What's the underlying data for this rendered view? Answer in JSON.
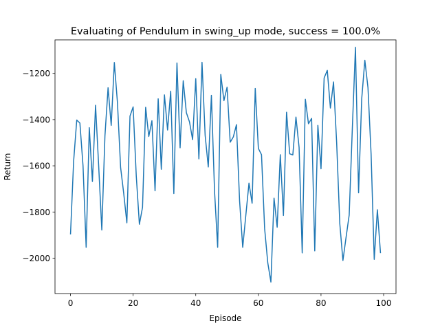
{
  "chart_data": {
    "type": "line",
    "title": "Evaluating of Pendulum in swing_up mode, success = 100.0%",
    "xlabel": "Episode",
    "ylabel": "Return",
    "xlim": [
      -4.95,
      103.95
    ],
    "ylim": [
      -2153,
      -1055
    ],
    "xticks": [
      0,
      20,
      40,
      60,
      80,
      100
    ],
    "yticks": [
      -2000,
      -1800,
      -1600,
      -1400,
      -1200
    ],
    "grid": false,
    "legend": "none",
    "series": [
      {
        "color": "#1f77b4",
        "x": [
          0,
          1,
          2,
          3,
          4,
          5,
          6,
          7,
          8,
          9,
          10,
          11,
          12,
          13,
          14,
          15,
          16,
          17,
          18,
          19,
          20,
          21,
          22,
          23,
          24,
          25,
          26,
          27,
          28,
          29,
          30,
          31,
          32,
          33,
          34,
          35,
          36,
          37,
          38,
          39,
          40,
          41,
          42,
          43,
          44,
          45,
          46,
          47,
          48,
          49,
          50,
          51,
          52,
          53,
          54,
          55,
          56,
          57,
          58,
          59,
          60,
          61,
          62,
          63,
          64,
          65,
          66,
          67,
          68,
          69,
          70,
          71,
          72,
          73,
          74,
          75,
          76,
          77,
          78,
          79,
          80,
          81,
          82,
          83,
          84,
          85,
          86,
          87,
          88,
          89,
          90,
          91,
          92,
          93,
          94,
          95,
          96,
          97,
          98,
          99
        ],
        "values": [
          -1897,
          -1580,
          -1402,
          -1415,
          -1600,
          -1953,
          -1435,
          -1668,
          -1338,
          -1601,
          -1878,
          -1470,
          -1262,
          -1425,
          -1153,
          -1328,
          -1607,
          -1720,
          -1847,
          -1385,
          -1345,
          -1643,
          -1853,
          -1780,
          -1347,
          -1473,
          -1405,
          -1708,
          -1310,
          -1615,
          -1293,
          -1445,
          -1277,
          -1720,
          -1155,
          -1522,
          -1232,
          -1370,
          -1410,
          -1487,
          -1223,
          -1570,
          -1152,
          -1468,
          -1605,
          -1295,
          -1710,
          -1953,
          -1205,
          -1318,
          -1260,
          -1498,
          -1475,
          -1422,
          -1752,
          -1953,
          -1813,
          -1675,
          -1762,
          -1265,
          -1525,
          -1552,
          -1872,
          -2020,
          -2103,
          -1740,
          -1866,
          -1552,
          -1815,
          -1368,
          -1548,
          -1553,
          -1389,
          -1520,
          -1977,
          -1312,
          -1418,
          -1395,
          -1968,
          -1425,
          -1613,
          -1220,
          -1187,
          -1350,
          -1237,
          -1500,
          -1850,
          -2010,
          -1910,
          -1813,
          -1440,
          -1087,
          -1717,
          -1310,
          -1143,
          -1262,
          -1550,
          -2005,
          -1790,
          -1978
        ]
      }
    ]
  }
}
